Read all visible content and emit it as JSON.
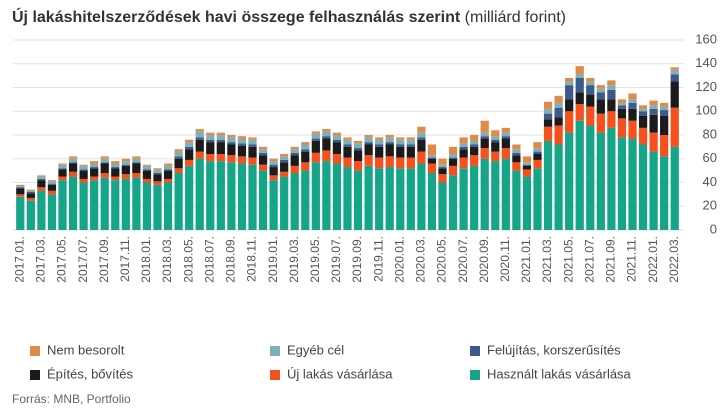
{
  "chart_data": {
    "type": "bar",
    "stacked": true,
    "title": "Új lakáshitelszerződések havi összege felhasználás szerint",
    "subtitle": "(milliárd forint)",
    "source": "Forrás: MNB, Portfolio",
    "categories": [
      "2017.01.",
      null,
      "2017.03.",
      null,
      "2017.05.",
      null,
      "2017.07.",
      null,
      "2017.09.",
      null,
      "2017.11.",
      null,
      "2018.01.",
      null,
      "2018.03.",
      null,
      "2018.05.",
      null,
      "2018.07.",
      null,
      "2018.09.",
      null,
      "2018.11.",
      null,
      "2019.01.",
      null,
      "2019.03.",
      null,
      "2019.05.",
      null,
      "2019.07.",
      null,
      "2019.09.",
      null,
      "2019.11.",
      null,
      "2020.01.",
      null,
      "2020.03.",
      null,
      "2020.05.",
      null,
      "2020.07.",
      null,
      "2020.09.",
      null,
      "2020.11.",
      null,
      "2021.01.",
      null,
      "2021.03.",
      null,
      "2021.05.",
      null,
      "2021.07.",
      null,
      "2021.09.",
      null,
      "2021.11.",
      null,
      "2022.01.",
      null,
      "2022.03."
    ],
    "series": [
      {
        "name": "Használt lakás vásárlása",
        "color": "#16a589",
        "values": [
          28,
          25,
          33,
          30,
          42,
          45,
          40,
          42,
          44,
          42,
          43,
          44,
          40,
          38,
          40,
          48,
          54,
          60,
          58,
          58,
          57,
          56,
          55,
          50,
          42,
          45,
          48,
          50,
          57,
          58,
          56,
          53,
          50,
          54,
          52,
          53,
          52,
          52,
          56,
          48,
          40,
          46,
          52,
          54,
          60,
          58,
          60,
          50,
          45,
          52,
          75,
          72,
          82,
          92,
          88,
          82,
          86,
          78,
          77,
          72,
          66,
          62,
          70
        ]
      },
      {
        "name": "Új lakás vásárlása",
        "color": "#f4511e",
        "values": [
          2,
          2,
          3,
          3,
          3,
          4,
          3,
          3,
          4,
          3,
          4,
          4,
          3,
          3,
          3,
          4,
          5,
          6,
          6,
          6,
          6,
          6,
          6,
          5,
          4,
          4,
          6,
          7,
          8,
          9,
          8,
          8,
          8,
          9,
          9,
          9,
          9,
          9,
          10,
          8,
          7,
          8,
          9,
          9,
          9,
          8,
          9,
          7,
          6,
          7,
          12,
          16,
          18,
          14,
          16,
          16,
          14,
          16,
          15,
          14,
          16,
          18,
          33
        ]
      },
      {
        "name": "Építés, bővítés",
        "color": "#1b1b1b",
        "values": [
          5,
          4,
          6,
          5,
          6,
          7,
          7,
          7,
          8,
          7,
          7,
          8,
          7,
          6,
          7,
          8,
          9,
          10,
          10,
          10,
          9,
          9,
          9,
          8,
          7,
          8,
          9,
          9,
          10,
          10,
          10,
          9,
          9,
          9,
          9,
          10,
          9,
          9,
          10,
          4,
          5,
          6,
          7,
          7,
          8,
          8,
          8,
          6,
          3,
          5,
          6,
          7,
          10,
          10,
          10,
          12,
          10,
          8,
          10,
          10,
          15,
          16,
          22
        ]
      },
      {
        "name": "Felújítás, korszerűsítés",
        "color": "#3d5a8c",
        "values": [
          1,
          1,
          1,
          1,
          1,
          1,
          1,
          1,
          1,
          1,
          1,
          1,
          1,
          1,
          1,
          2,
          2,
          2,
          2,
          2,
          2,
          2,
          2,
          2,
          2,
          2,
          2,
          2,
          2,
          2,
          2,
          2,
          2,
          2,
          2,
          2,
          2,
          2,
          2,
          1,
          1,
          1,
          2,
          2,
          2,
          2,
          2,
          2,
          1,
          2,
          5,
          8,
          12,
          12,
          8,
          6,
          8,
          3,
          5,
          4,
          5,
          5,
          6
        ]
      },
      {
        "name": "Egyéb cél",
        "color": "#7fb0b6",
        "values": [
          1,
          1,
          2,
          2,
          3,
          3,
          3,
          3,
          3,
          3,
          3,
          3,
          3,
          3,
          3,
          4,
          4,
          5,
          4,
          4,
          4,
          4,
          4,
          3,
          3,
          3,
          3,
          4,
          4,
          4,
          4,
          4,
          4,
          4,
          4,
          4,
          4,
          4,
          4,
          2,
          2,
          3,
          3,
          3,
          3,
          3,
          3,
          3,
          2,
          3,
          4,
          4,
          3,
          3,
          3,
          3,
          4,
          2,
          3,
          2,
          3,
          3,
          4
        ]
      },
      {
        "name": "Nem besorolt",
        "color": "#e08a4a",
        "values": [
          1,
          1,
          1,
          1,
          1,
          2,
          1,
          2,
          2,
          2,
          2,
          2,
          1,
          1,
          2,
          2,
          2,
          2,
          2,
          2,
          2,
          2,
          2,
          2,
          2,
          2,
          2,
          2,
          2,
          2,
          2,
          2,
          2,
          2,
          2,
          2,
          2,
          2,
          5,
          9,
          5,
          6,
          5,
          5,
          10,
          5,
          4,
          4,
          5,
          5,
          6,
          6,
          3,
          7,
          3,
          3,
          4,
          3,
          5,
          3,
          4,
          3,
          2
        ]
      }
    ],
    "ylim": [
      0,
      160
    ],
    "yticks": [
      0,
      20,
      40,
      60,
      80,
      100,
      120,
      140,
      160
    ],
    "grid": true,
    "y_axis_side": "right"
  }
}
